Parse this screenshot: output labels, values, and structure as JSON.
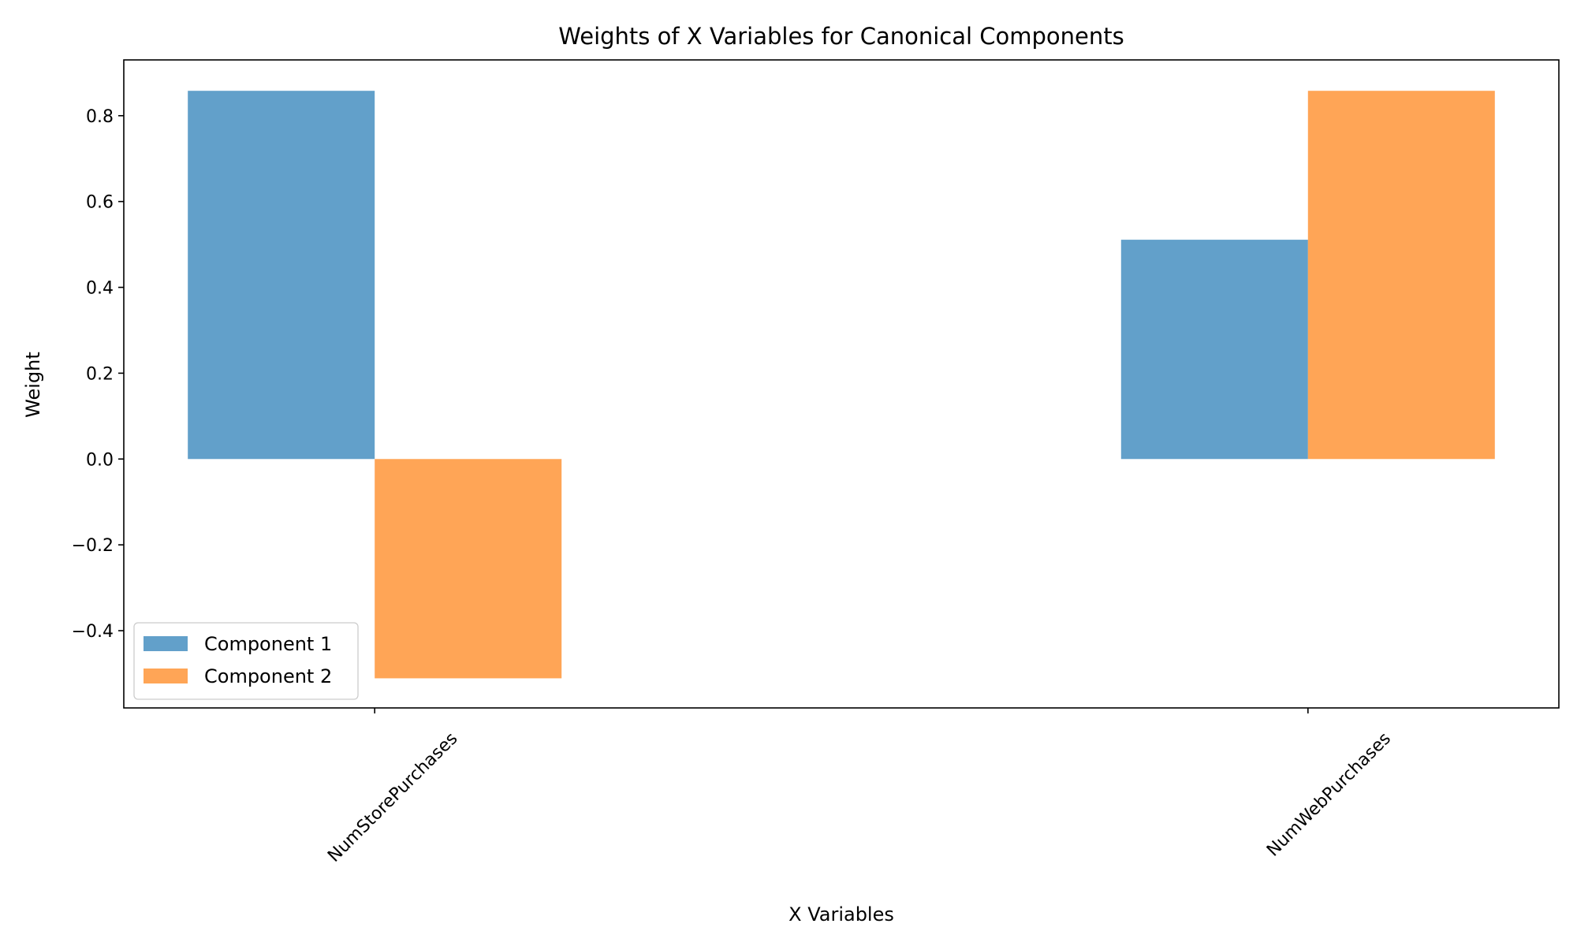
{
  "chart_data": {
    "type": "bar",
    "title": "Weights of X Variables for Canonical Components",
    "xlabel": "X Variables",
    "ylabel": "Weight",
    "categories": [
      "NumStorePurchases",
      "NumWebPurchases"
    ],
    "series": [
      {
        "name": "Component 1",
        "values": [
          0.858,
          0.511
        ],
        "color": "#1f77b4",
        "opacity": 0.7
      },
      {
        "name": "Component 2",
        "values": [
          -0.511,
          0.858
        ],
        "color": "#ff7f0e",
        "opacity": 0.7
      }
    ],
    "ylim": [
      -0.58,
      0.93
    ],
    "yticks": [
      -0.4,
      -0.2,
      0.0,
      0.2,
      0.4,
      0.6,
      0.8
    ],
    "ytick_labels": [
      "−0.4",
      "−0.2",
      "0.0",
      "0.2",
      "0.4",
      "0.6",
      "0.8"
    ],
    "x_tick_rotation_deg": 45,
    "grid": false,
    "legend": "lower left"
  }
}
